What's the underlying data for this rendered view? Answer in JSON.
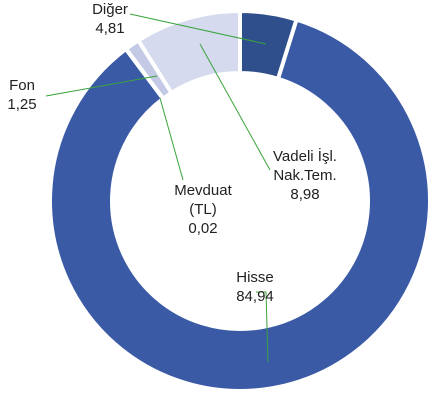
{
  "chart_data": {
    "type": "donut",
    "categories": [
      "Diğer",
      "Hisse",
      "Mevduat (TL)",
      "Fon",
      "Vadeli İşl. Nak.Tem."
    ],
    "values": [
      4.81,
      84.94,
      0.02,
      1.25,
      8.98
    ],
    "value_labels": [
      "4,81",
      "84,94",
      "0,02",
      "1,25",
      "8,98"
    ],
    "colors": [
      "#2f4f8c",
      "#3a5aa6",
      "#e4e7f3",
      "#c4cae6",
      "#d5daef"
    ]
  }
}
